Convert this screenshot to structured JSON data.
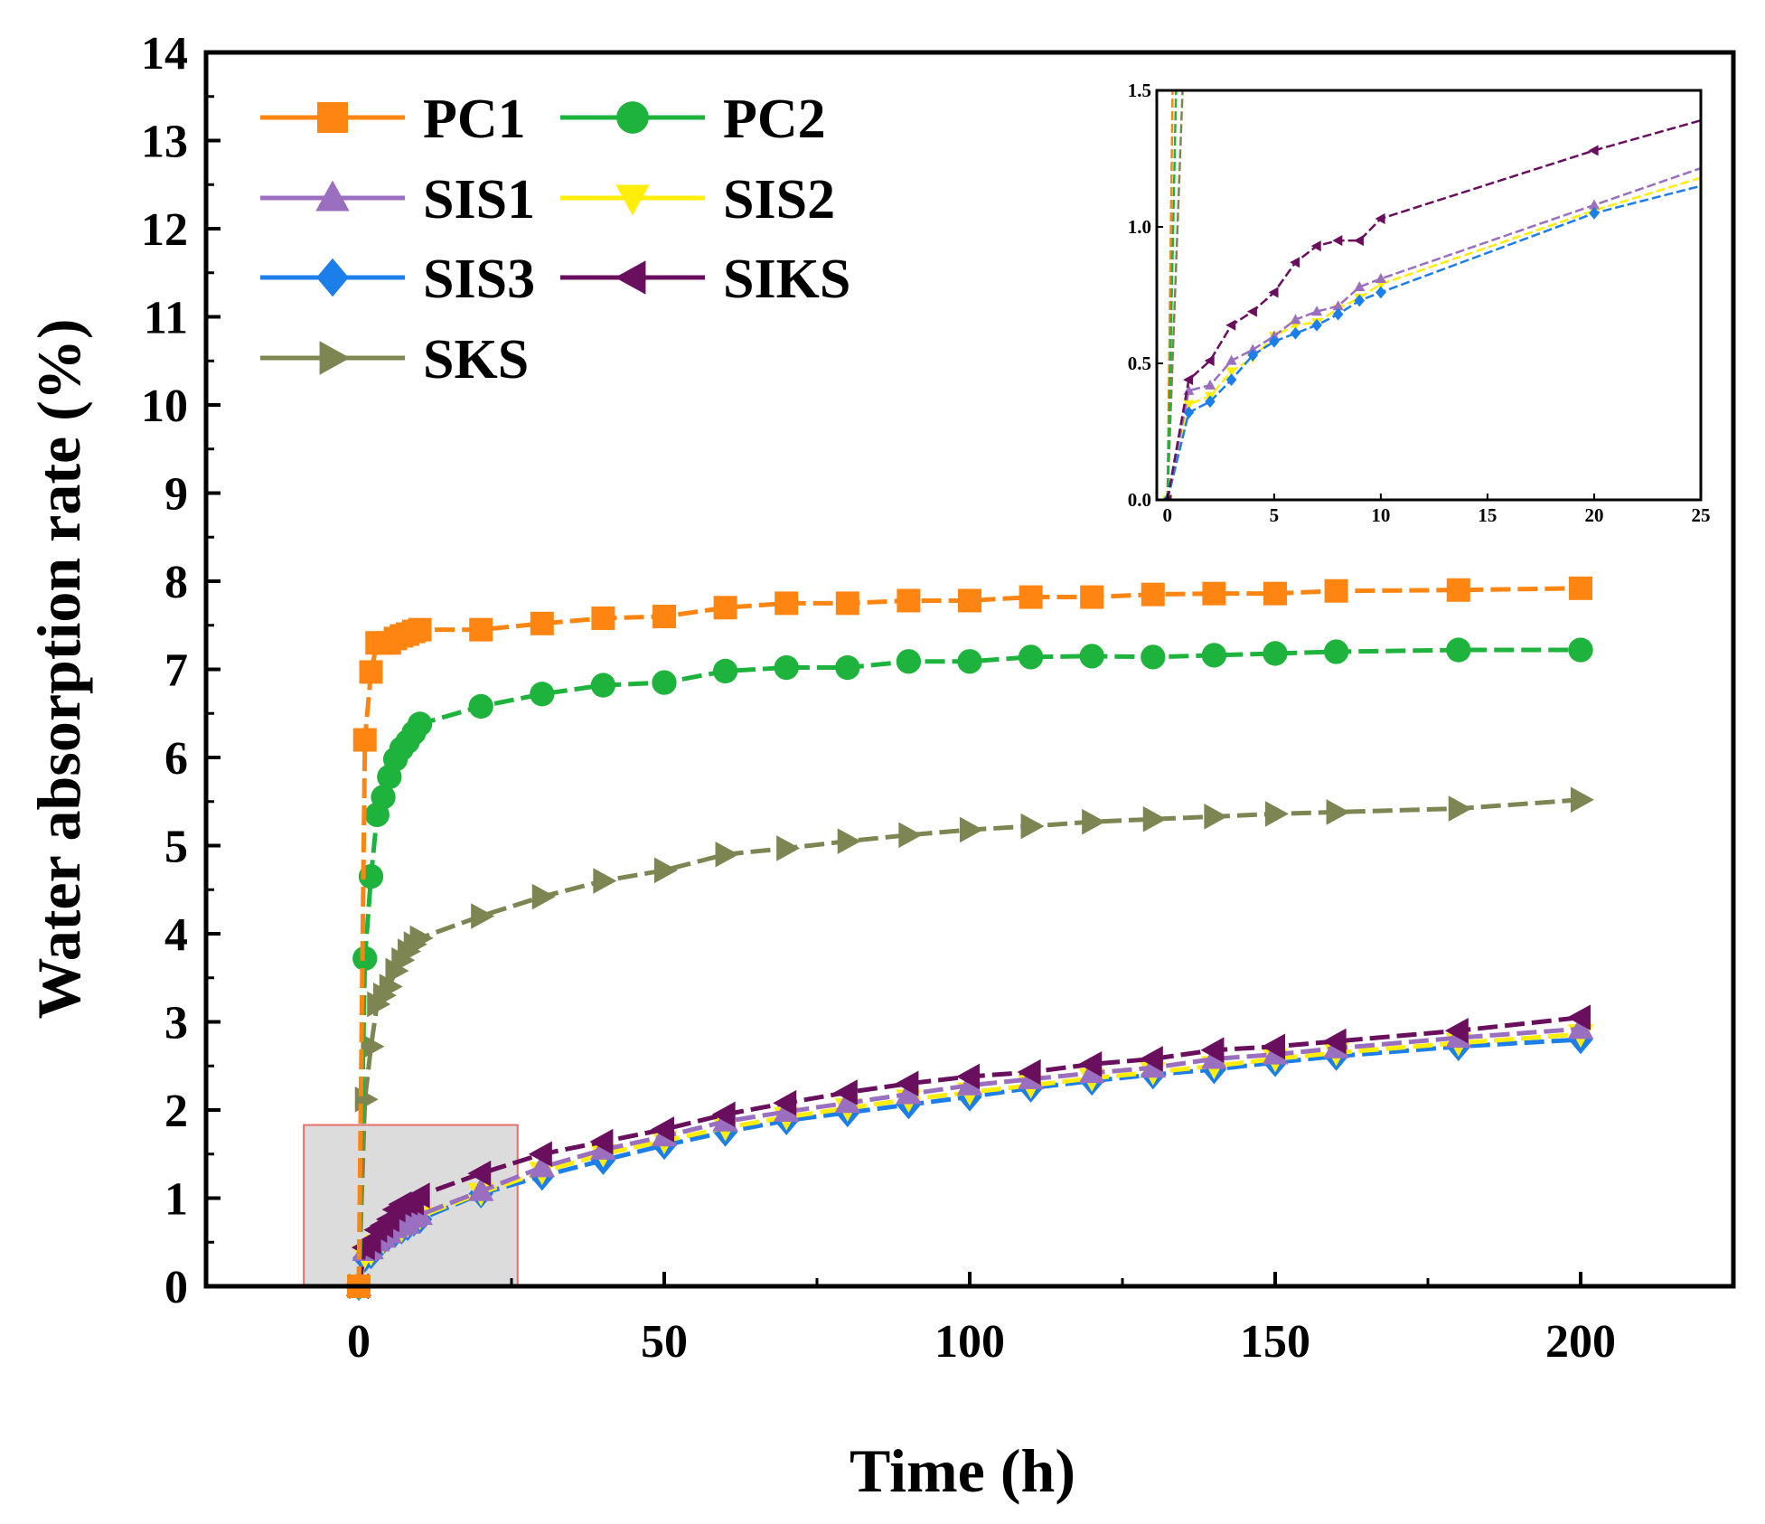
{
  "chart_data": {
    "type": "line",
    "xlabel": "Time (h)",
    "ylabel": "Water absorption rate (%)",
    "xlim": [
      -25,
      225
    ],
    "ylim": [
      0,
      14
    ],
    "xticks": [
      0,
      50,
      100,
      150,
      200
    ],
    "yticks": [
      0,
      1,
      2,
      3,
      4,
      5,
      6,
      7,
      8,
      9,
      10,
      11,
      12,
      13,
      14
    ],
    "legend_position": "top-left",
    "highlight_region": {
      "x": [
        -9,
        26
      ],
      "y": [
        0,
        1.83
      ],
      "fill": "#dcdcdc",
      "stroke": "#e8706a"
    },
    "series": [
      {
        "name": "PC1",
        "color": "#ff8512",
        "marker": "square",
        "x": [
          0,
          1,
          2,
          3,
          4,
          5,
          6,
          7,
          8,
          9,
          10,
          20,
          30,
          40,
          50,
          60,
          70,
          80,
          90,
          100,
          110,
          120,
          130,
          140,
          150,
          160,
          180,
          200
        ],
        "y": [
          0,
          6.2,
          6.97,
          7.3,
          7.3,
          7.3,
          7.35,
          7.38,
          7.4,
          7.43,
          7.45,
          7.45,
          7.52,
          7.58,
          7.6,
          7.7,
          7.75,
          7.75,
          7.78,
          7.78,
          7.82,
          7.82,
          7.85,
          7.86,
          7.86,
          7.89,
          7.9,
          7.92
        ]
      },
      {
        "name": "PC2",
        "color": "#1db33c",
        "marker": "circle",
        "x": [
          0,
          1,
          2,
          3,
          4,
          5,
          6,
          7,
          8,
          9,
          10,
          20,
          30,
          40,
          50,
          60,
          70,
          80,
          90,
          100,
          110,
          120,
          130,
          140,
          150,
          160,
          180,
          200
        ],
        "y": [
          0,
          3.72,
          4.65,
          5.35,
          5.55,
          5.78,
          5.98,
          6.1,
          6.18,
          6.28,
          6.38,
          6.58,
          6.72,
          6.82,
          6.85,
          6.98,
          7.02,
          7.02,
          7.09,
          7.09,
          7.14,
          7.15,
          7.14,
          7.16,
          7.18,
          7.2,
          7.22,
          7.22
        ]
      },
      {
        "name": "SIS1",
        "color": "#9b6fc0",
        "marker": "triangle-up",
        "x": [
          0,
          1,
          2,
          3,
          4,
          5,
          6,
          7,
          8,
          9,
          10,
          20,
          30,
          40,
          50,
          60,
          70,
          80,
          90,
          100,
          110,
          120,
          130,
          140,
          150,
          160,
          180,
          200
        ],
        "y": [
          0,
          0.4,
          0.42,
          0.51,
          0.55,
          0.6,
          0.66,
          0.69,
          0.71,
          0.78,
          0.81,
          1.08,
          1.35,
          1.55,
          1.7,
          1.87,
          1.98,
          2.08,
          2.18,
          2.28,
          2.35,
          2.42,
          2.48,
          2.58,
          2.63,
          2.7,
          2.82,
          2.92
        ]
      },
      {
        "name": "SIS2",
        "color": "#ffee0a",
        "marker": "triangle-down",
        "x": [
          0,
          1,
          2,
          3,
          4,
          5,
          6,
          7,
          8,
          9,
          10,
          20,
          30,
          40,
          50,
          60,
          70,
          80,
          90,
          100,
          110,
          120,
          130,
          140,
          150,
          160,
          180,
          200
        ],
        "y": [
          0,
          0.35,
          0.38,
          0.47,
          0.52,
          0.6,
          0.64,
          0.65,
          0.7,
          0.74,
          0.79,
          1.06,
          1.3,
          1.5,
          1.65,
          1.8,
          1.92,
          2.02,
          2.12,
          2.2,
          2.28,
          2.36,
          2.43,
          2.5,
          2.58,
          2.65,
          2.76,
          2.86
        ]
      },
      {
        "name": "SIS3",
        "color": "#1c7ee8",
        "marker": "diamond",
        "x": [
          0,
          1,
          2,
          3,
          4,
          5,
          6,
          7,
          8,
          9,
          10,
          20,
          30,
          40,
          50,
          60,
          70,
          80,
          90,
          100,
          110,
          120,
          130,
          140,
          150,
          160,
          180,
          200
        ],
        "y": [
          0,
          0.32,
          0.36,
          0.44,
          0.53,
          0.58,
          0.61,
          0.64,
          0.68,
          0.73,
          0.76,
          1.05,
          1.25,
          1.43,
          1.6,
          1.75,
          1.88,
          1.97,
          2.06,
          2.15,
          2.25,
          2.33,
          2.4,
          2.46,
          2.54,
          2.61,
          2.72,
          2.8
        ]
      },
      {
        "name": "SIKS",
        "color": "#6a0f5e",
        "marker": "triangle-left",
        "x": [
          0,
          1,
          2,
          3,
          4,
          5,
          6,
          7,
          8,
          9,
          10,
          20,
          30,
          40,
          50,
          60,
          70,
          80,
          90,
          100,
          110,
          120,
          130,
          140,
          150,
          160,
          180,
          200
        ],
        "y": [
          0,
          0.44,
          0.51,
          0.64,
          0.69,
          0.76,
          0.87,
          0.93,
          0.95,
          0.95,
          1.03,
          1.28,
          1.5,
          1.64,
          1.78,
          1.95,
          2.08,
          2.2,
          2.3,
          2.38,
          2.43,
          2.52,
          2.58,
          2.68,
          2.72,
          2.78,
          2.9,
          3.05
        ]
      },
      {
        "name": "SKS",
        "color": "#7d8653",
        "marker": "triangle-right",
        "x": [
          0,
          1,
          2,
          3,
          4,
          5,
          6,
          7,
          8,
          9,
          10,
          20,
          30,
          40,
          50,
          60,
          70,
          80,
          90,
          100,
          110,
          120,
          130,
          140,
          150,
          160,
          180,
          200
        ],
        "y": [
          0,
          2.12,
          2.72,
          3.2,
          3.3,
          3.4,
          3.58,
          3.7,
          3.8,
          3.88,
          3.95,
          4.2,
          4.42,
          4.6,
          4.72,
          4.9,
          4.97,
          5.05,
          5.12,
          5.18,
          5.22,
          5.27,
          5.3,
          5.33,
          5.36,
          5.38,
          5.42,
          5.52
        ]
      }
    ],
    "inset": {
      "xlim": [
        -0.5,
        25
      ],
      "ylim": [
        0,
        1.5
      ],
      "xticks": [
        0,
        5,
        10,
        15,
        20,
        25
      ],
      "yticks": [
        "0.0",
        "0.5",
        "1.0",
        "1.5"
      ]
    }
  }
}
